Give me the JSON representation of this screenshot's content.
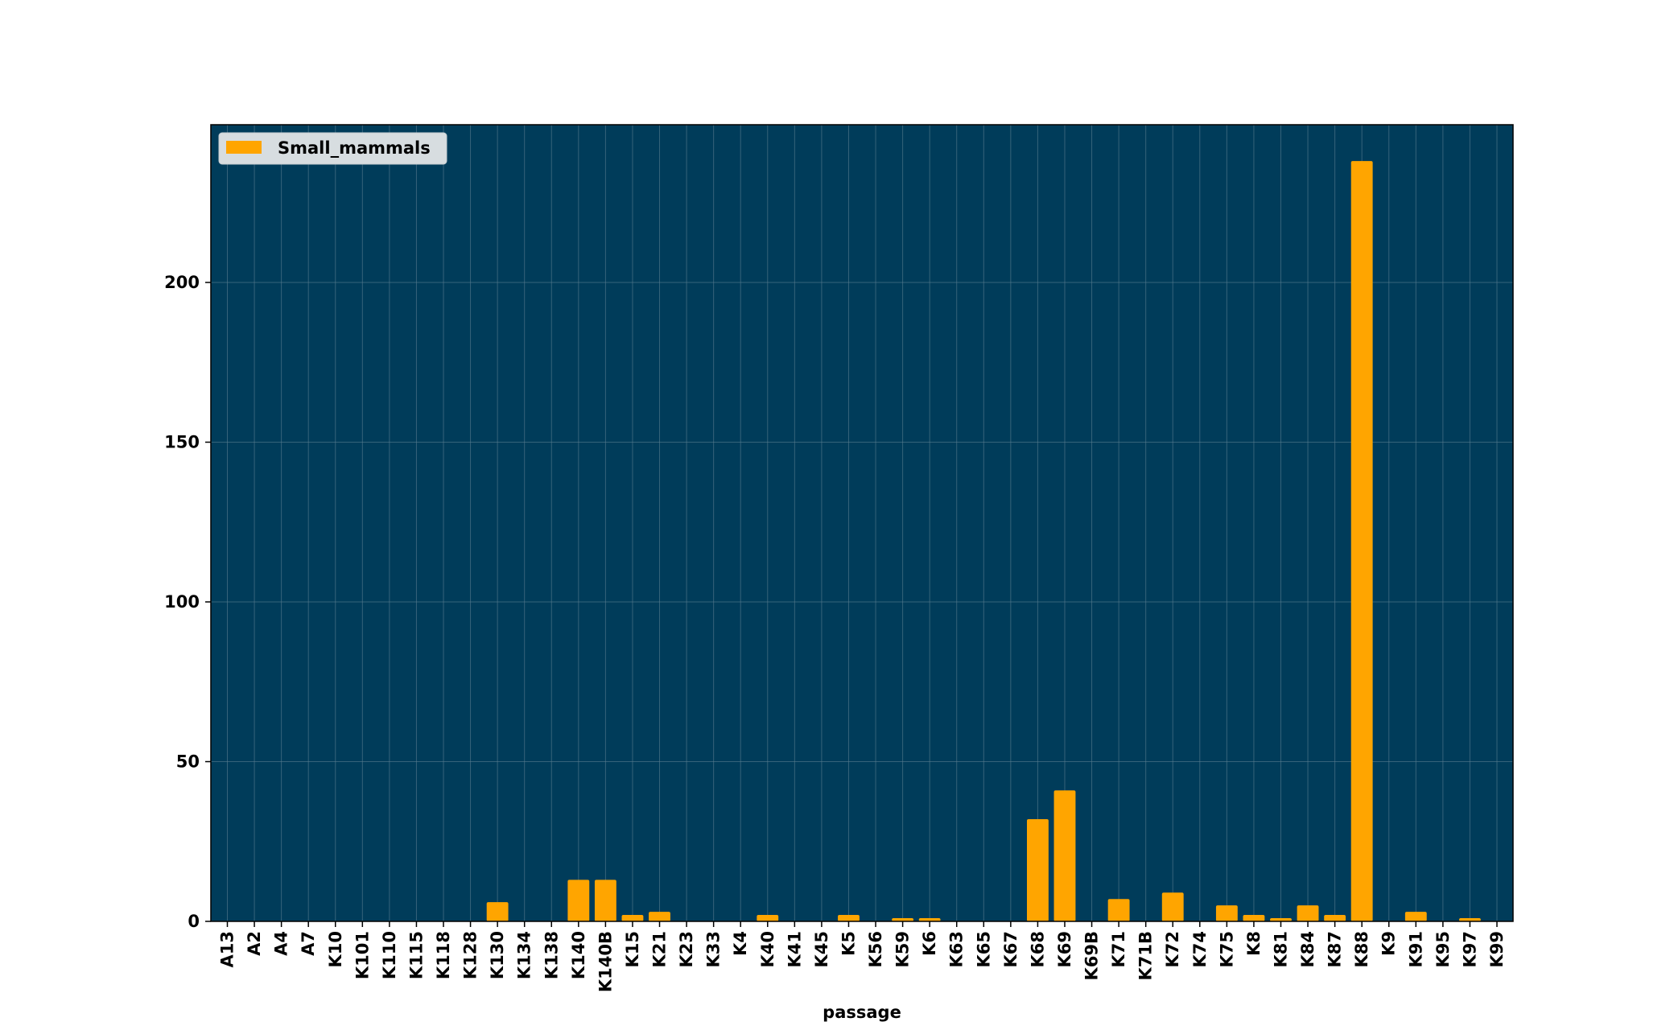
{
  "chart_data": {
    "type": "bar",
    "title": "",
    "xlabel": "passage",
    "ylabel": "",
    "ylim": [
      0,
      250
    ],
    "yticks": [
      0,
      50,
      100,
      150,
      200
    ],
    "grid": true,
    "legend_position": "top-left",
    "colors": {
      "background": "#003c5a",
      "bar": "#ffa500",
      "grid": "#5a7d90",
      "legend_box": "#d7dde0"
    },
    "categories": [
      "A13",
      "A2",
      "A4",
      "A7",
      "K10",
      "K101",
      "K110",
      "K115",
      "K118",
      "K128",
      "K130",
      "K134",
      "K138",
      "K140",
      "K140B",
      "K15",
      "K21",
      "K23",
      "K33",
      "K4",
      "K40",
      "K41",
      "K45",
      "K5",
      "K56",
      "K59",
      "K6",
      "K63",
      "K65",
      "K67",
      "K68",
      "K69",
      "K69B",
      "K71",
      "K71B",
      "K72",
      "K74",
      "K75",
      "K8",
      "K81",
      "K84",
      "K87",
      "K88",
      "K9",
      "K91",
      "K95",
      "K97",
      "K99"
    ],
    "series": [
      {
        "name": "Small_mammals",
        "values": [
          0,
          0,
          0,
          0,
          0,
          0,
          0,
          0,
          0,
          0,
          6,
          0,
          0,
          13,
          13,
          2,
          3,
          0,
          0,
          0,
          2,
          0,
          0,
          2,
          0,
          1,
          1,
          0,
          0,
          0,
          32,
          41,
          0,
          7,
          0,
          9,
          0,
          5,
          2,
          1,
          5,
          2,
          238,
          0,
          3,
          0,
          1,
          0
        ]
      }
    ]
  }
}
